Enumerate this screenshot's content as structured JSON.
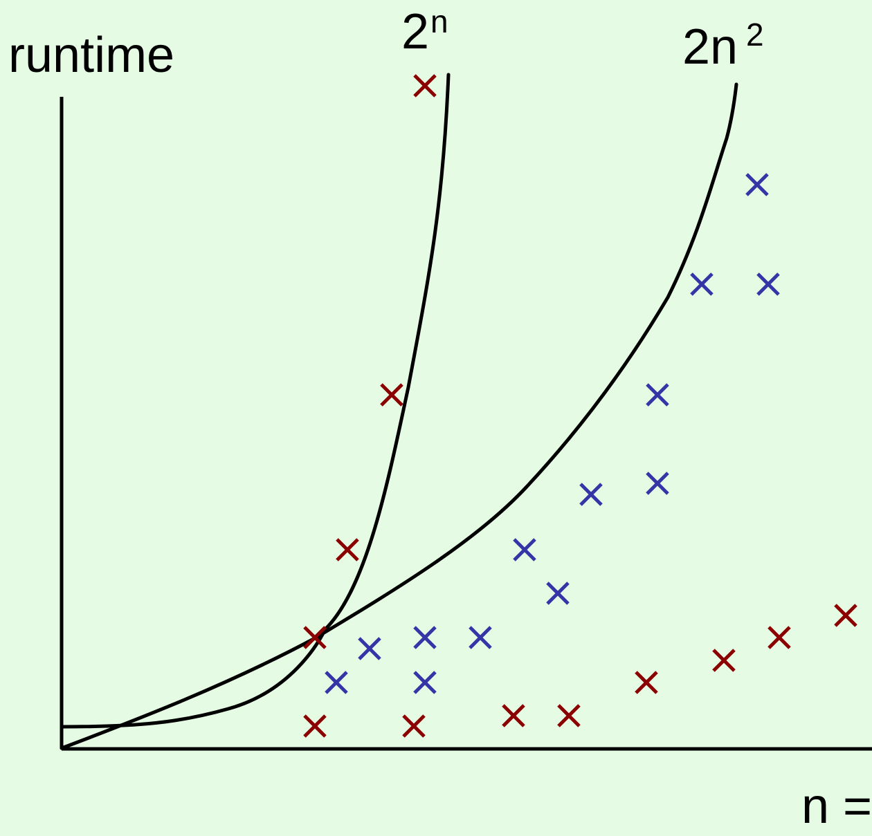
{
  "chart_data": {
    "type": "scatter",
    "ylabel": "runtime",
    "xlabel": "n =",
    "grid": false,
    "curves": [
      {
        "label_base": "2",
        "label_sup": "n"
      },
      {
        "label_base": "2n",
        "label_sup": "2"
      }
    ],
    "colors": {
      "background": "#e6fbe3",
      "axis": "#000000",
      "series_red": "#8b0000",
      "series_blue": "#3535a8"
    },
    "series": [
      {
        "color": "#8b0000",
        "points": [
          [
            455,
            1050
          ],
          [
            598,
            1050
          ],
          [
            742,
            1035
          ],
          [
            822,
            1035
          ],
          [
            934,
            987
          ],
          [
            1046,
            955
          ],
          [
            1126,
            922
          ],
          [
            1222,
            890
          ],
          [
            455,
            922
          ],
          [
            502,
            795
          ],
          [
            566,
            571
          ],
          [
            614,
            124
          ]
        ]
      },
      {
        "color": "#3535a8",
        "points": [
          [
            486,
            987
          ],
          [
            534,
            938
          ],
          [
            614,
            987
          ],
          [
            614,
            922
          ],
          [
            694,
            922
          ],
          [
            758,
            795
          ],
          [
            806,
            858
          ],
          [
            854,
            715
          ],
          [
            950,
            699
          ],
          [
            950,
            571
          ],
          [
            1014,
            411
          ],
          [
            1110,
            411
          ],
          [
            1094,
            267
          ]
        ]
      }
    ]
  }
}
